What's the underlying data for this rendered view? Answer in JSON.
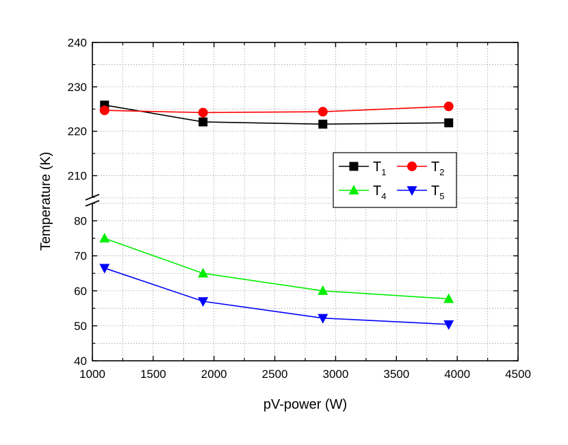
{
  "chart_data": {
    "type": "line",
    "title": "",
    "xlabel": "pV-power (W)",
    "ylabel": "Temperature (K)",
    "xlim": [
      1000,
      4500
    ],
    "x_ticks": [
      "1000",
      "1500",
      "2000",
      "2500",
      "3000",
      "3500",
      "4000",
      "4500"
    ],
    "y_axis_break": true,
    "y_upper_segment": {
      "ylim": [
        205,
        240
      ],
      "ticks": [
        "210",
        "220",
        "230",
        "240"
      ]
    },
    "y_lower_segment": {
      "ylim": [
        40,
        85
      ],
      "ticks": [
        "40",
        "50",
        "60",
        "70",
        "80"
      ]
    },
    "grid": true,
    "legend_placement": "center-right",
    "series": [
      {
        "name": "T1",
        "label_main": "T",
        "label_sub": "1",
        "color": "#000000",
        "marker": "square",
        "segment": "upper",
        "x": [
          1100,
          1910,
          2895,
          3930
        ],
        "y": [
          225.9,
          222.1,
          221.6,
          221.9
        ]
      },
      {
        "name": "T2",
        "label_main": "T",
        "label_sub": "2",
        "color": "#ff0000",
        "marker": "circle",
        "segment": "upper",
        "x": [
          1100,
          1910,
          2895,
          3930
        ],
        "y": [
          224.7,
          224.2,
          224.4,
          225.6
        ]
      },
      {
        "name": "T4",
        "label_main": "T",
        "label_sub": "4",
        "color": "#00ee00",
        "marker": "triangle-up",
        "segment": "lower",
        "x": [
          1100,
          1910,
          2895,
          3930
        ],
        "y": [
          75.0,
          65.0,
          60.0,
          57.7
        ]
      },
      {
        "name": "T5",
        "label_main": "T",
        "label_sub": "5",
        "color": "#0000ff",
        "marker": "triangle-down",
        "segment": "lower",
        "x": [
          1100,
          1910,
          2895,
          3930
        ],
        "y": [
          66.5,
          57.0,
          52.2,
          50.4
        ]
      }
    ]
  }
}
